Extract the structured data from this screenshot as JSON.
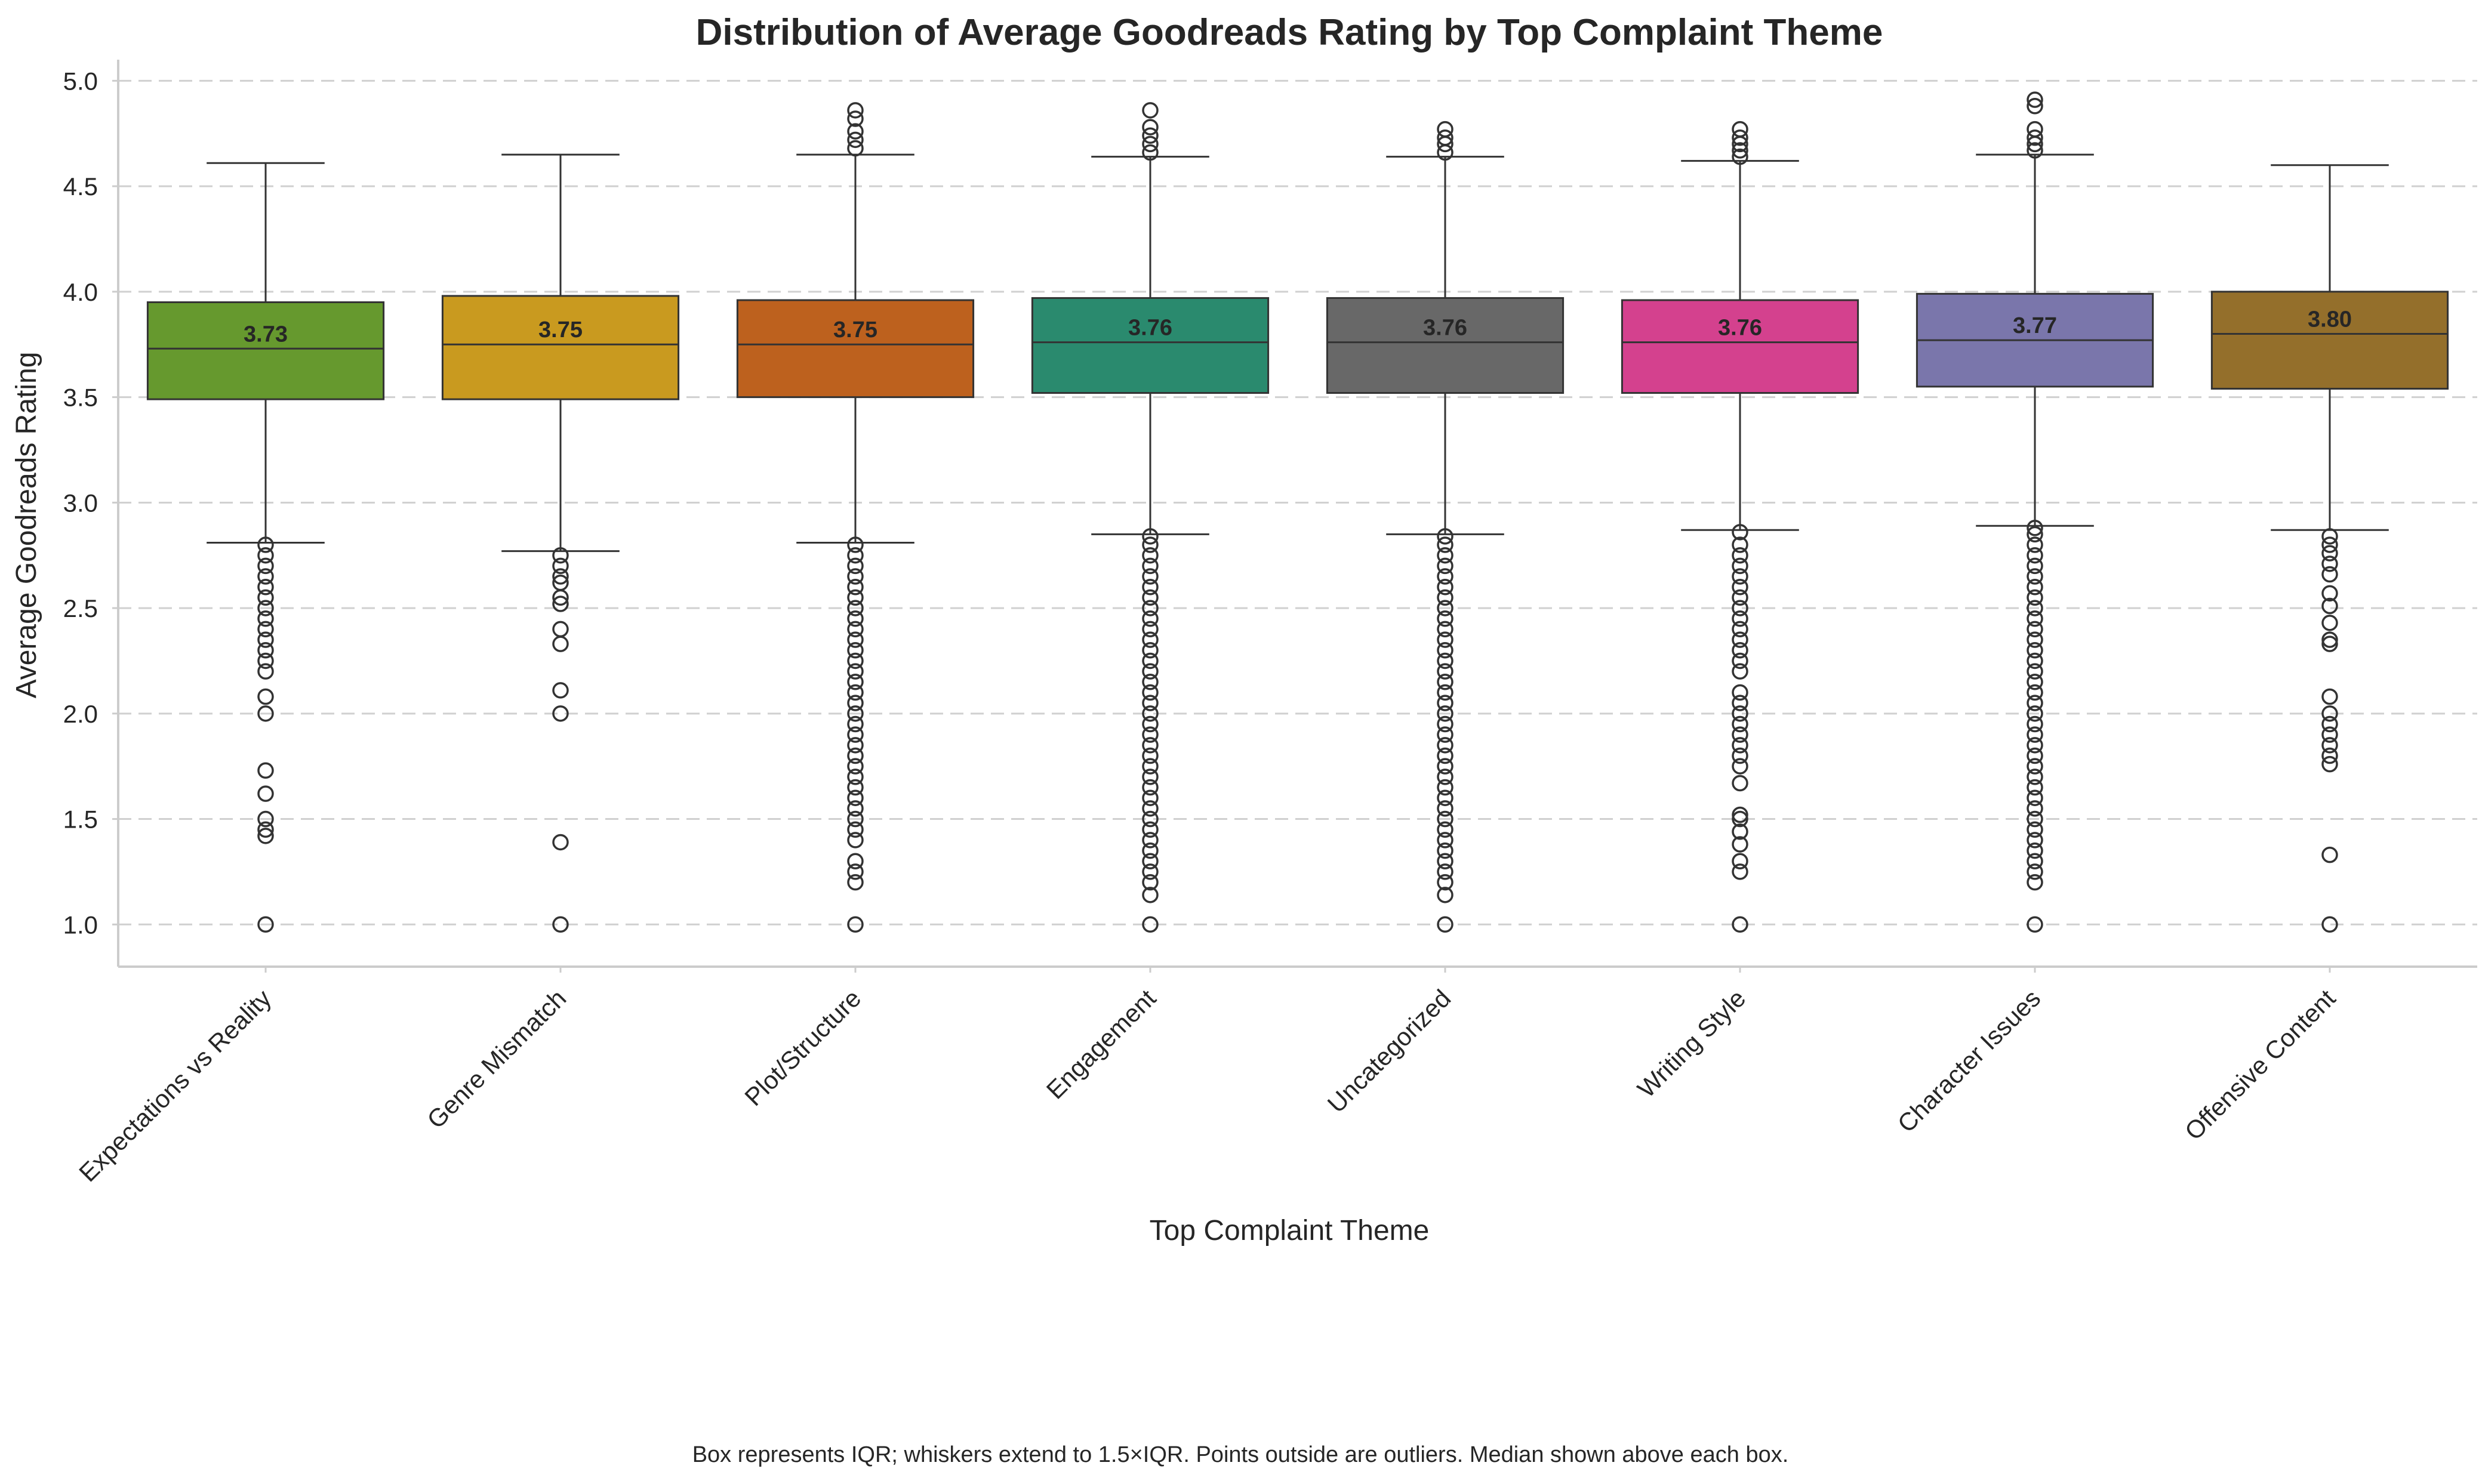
{
  "chart_data": {
    "type": "box",
    "title": "Distribution of Average Goodreads Rating by Top Complaint Theme",
    "xlabel": "Top Complaint Theme",
    "ylabel": "Average Goodreads Rating",
    "ylim": [
      0.8,
      5.1
    ],
    "yticks": [
      "1.0",
      "1.5",
      "2.0",
      "2.5",
      "3.0",
      "3.5",
      "4.0",
      "4.5",
      "5.0"
    ],
    "grid": "horizontal dashed",
    "footnote": "Box represents IQR; whiskers extend to 1.5×IQR. Points outside are outliers. Median shown above each box.",
    "categories": [
      {
        "name": "Expectations vs Reality",
        "color": "#66992e",
        "q1": 3.49,
        "median": 3.73,
        "q3": 3.95,
        "whisker_low": 2.81,
        "whisker_high": 4.61,
        "median_label": "3.73",
        "outliers": [
          1.0,
          1.42,
          1.45,
          1.5,
          1.62,
          1.73,
          2.0,
          2.08,
          2.2,
          2.25,
          2.3,
          2.35,
          2.4,
          2.45,
          2.5,
          2.55,
          2.6,
          2.65,
          2.7,
          2.75,
          2.8
        ]
      },
      {
        "name": "Genre Mismatch",
        "color": "#c99a1f",
        "q1": 3.49,
        "median": 3.75,
        "q3": 3.98,
        "whisker_low": 2.77,
        "whisker_high": 4.65,
        "median_label": "3.75",
        "outliers": [
          1.0,
          1.39,
          2.0,
          2.11,
          2.33,
          2.4,
          2.52,
          2.55,
          2.62,
          2.65,
          2.7,
          2.75
        ]
      },
      {
        "name": "Plot/Structure",
        "color": "#bd611e",
        "q1": 3.5,
        "median": 3.75,
        "q3": 3.96,
        "whisker_low": 2.81,
        "whisker_high": 4.65,
        "median_label": "3.75",
        "outliers": [
          1.0,
          1.2,
          1.25,
          1.3,
          1.4,
          1.45,
          1.5,
          1.55,
          1.6,
          1.65,
          1.7,
          1.75,
          1.8,
          1.85,
          1.9,
          1.95,
          2.0,
          2.05,
          2.1,
          2.15,
          2.2,
          2.25,
          2.3,
          2.35,
          2.4,
          2.45,
          2.5,
          2.55,
          2.6,
          2.65,
          2.7,
          2.75,
          2.8,
          4.68,
          4.72,
          4.76,
          4.82,
          4.86
        ]
      },
      {
        "name": "Engagement",
        "color": "#2a8a6e",
        "q1": 3.52,
        "median": 3.76,
        "q3": 3.97,
        "whisker_low": 2.85,
        "whisker_high": 4.64,
        "median_label": "3.76",
        "outliers": [
          1.0,
          1.14,
          1.2,
          1.25,
          1.3,
          1.35,
          1.4,
          1.45,
          1.5,
          1.55,
          1.6,
          1.65,
          1.7,
          1.75,
          1.8,
          1.85,
          1.9,
          1.95,
          2.0,
          2.05,
          2.1,
          2.15,
          2.2,
          2.25,
          2.3,
          2.35,
          2.4,
          2.45,
          2.5,
          2.55,
          2.6,
          2.65,
          2.7,
          2.75,
          2.8,
          2.84,
          4.66,
          4.7,
          4.74,
          4.78,
          4.86
        ]
      },
      {
        "name": "Uncategorized",
        "color": "#686868",
        "q1": 3.52,
        "median": 3.76,
        "q3": 3.97,
        "whisker_low": 2.85,
        "whisker_high": 4.64,
        "median_label": "3.76",
        "outliers": [
          1.0,
          1.14,
          1.2,
          1.25,
          1.3,
          1.35,
          1.4,
          1.45,
          1.5,
          1.55,
          1.6,
          1.65,
          1.7,
          1.75,
          1.8,
          1.85,
          1.9,
          1.95,
          2.0,
          2.05,
          2.1,
          2.15,
          2.2,
          2.25,
          2.3,
          2.35,
          2.4,
          2.45,
          2.5,
          2.55,
          2.6,
          2.65,
          2.7,
          2.75,
          2.8,
          2.84,
          4.66,
          4.7,
          4.73,
          4.77
        ]
      },
      {
        "name": "Writing Style",
        "color": "#d4418e",
        "q1": 3.52,
        "median": 3.76,
        "q3": 3.96,
        "whisker_low": 2.87,
        "whisker_high": 4.62,
        "median_label": "3.76",
        "outliers": [
          1.0,
          1.25,
          1.3,
          1.38,
          1.44,
          1.5,
          1.52,
          1.67,
          1.75,
          1.8,
          1.85,
          1.9,
          1.95,
          2.0,
          2.05,
          2.1,
          2.2,
          2.25,
          2.3,
          2.35,
          2.4,
          2.45,
          2.5,
          2.55,
          2.6,
          2.65,
          2.7,
          2.75,
          2.8,
          2.86,
          4.64,
          4.67,
          4.7,
          4.73,
          4.77
        ]
      },
      {
        "name": "Character Issues",
        "color": "#7a76ab",
        "q1": 3.55,
        "median": 3.77,
        "q3": 3.99,
        "whisker_low": 2.89,
        "whisker_high": 4.65,
        "median_label": "3.77",
        "outliers": [
          1.0,
          1.2,
          1.25,
          1.3,
          1.35,
          1.4,
          1.45,
          1.5,
          1.55,
          1.6,
          1.65,
          1.7,
          1.75,
          1.8,
          1.85,
          1.9,
          1.95,
          2.0,
          2.05,
          2.1,
          2.15,
          2.2,
          2.25,
          2.3,
          2.35,
          2.4,
          2.45,
          2.5,
          2.55,
          2.6,
          2.65,
          2.7,
          2.75,
          2.8,
          2.85,
          2.88,
          4.67,
          4.7,
          4.73,
          4.77,
          4.88,
          4.91
        ]
      },
      {
        "name": "Offensive Content",
        "color": "#946f2b",
        "q1": 3.54,
        "median": 3.8,
        "q3": 4.0,
        "whisker_low": 2.87,
        "whisker_high": 4.6,
        "median_label": "3.80",
        "outliers": [
          1.0,
          1.33,
          1.76,
          1.8,
          1.85,
          1.9,
          1.95,
          2.0,
          2.08,
          2.33,
          2.35,
          2.43,
          2.51,
          2.57,
          2.66,
          2.71,
          2.76,
          2.8,
          2.84
        ]
      }
    ]
  }
}
